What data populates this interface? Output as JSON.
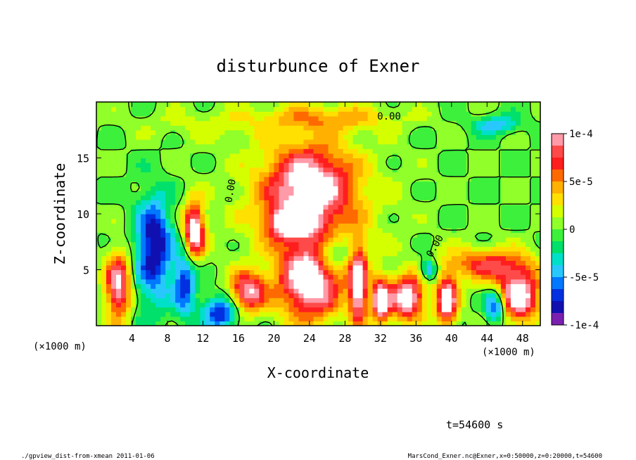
{
  "chart_data": {
    "type": "heatmap",
    "title": "disturbunce of Exner",
    "xlabel": "X-coordinate",
    "ylabel": "Z-coordinate",
    "x_unit": "(×1000 m)",
    "y_unit": "(×1000 m)",
    "x_ticks": [
      4,
      8,
      12,
      16,
      20,
      24,
      28,
      32,
      36,
      40,
      44,
      48
    ],
    "y_ticks": [
      5,
      10,
      15
    ],
    "xlim": [
      0,
      50
    ],
    "ylim": [
      0,
      20
    ],
    "colorbar": {
      "range": [
        -0.0001,
        0.0001
      ],
      "tick_values": [
        0.0001,
        5e-05,
        0,
        -5e-05,
        -0.0001
      ],
      "tick_labels": [
        "1e-4",
        "5e-5",
        "0",
        "-5e-5",
        "-1e-4"
      ],
      "colors": [
        "#ff9aa8",
        "#ff4a4a",
        "#ff1e1e",
        "#ff6a00",
        "#ffb000",
        "#ffe000",
        "#d4ff00",
        "#90ff2a",
        "#3cf03c",
        "#00e06a",
        "#00e0c8",
        "#28c8ff",
        "#0078ff",
        "#0030e0",
        "#1010b0",
        "#7a20b0"
      ]
    },
    "contour_labels": [
      "0.00",
      "0.00",
      "0.00"
    ],
    "annotation": "t=54600 s",
    "field": {
      "background": 0,
      "blobs": [
        {
          "x": 24,
          "z": 12.5,
          "rx": 4.5,
          "rz": 3.5,
          "v": 9e-05
        },
        {
          "x": 24,
          "z": 11,
          "rx": 8,
          "rz": 6,
          "v": 4e-05
        },
        {
          "x": 22,
          "z": 9.2,
          "rx": 2.5,
          "rz": 1.2,
          "v": 0.00011
        },
        {
          "x": 26,
          "z": 18.6,
          "rx": 8,
          "rz": 1.2,
          "v": 4e-05
        },
        {
          "x": 12,
          "z": 18,
          "rx": 8,
          "rz": 1.5,
          "v": 1.5e-05
        },
        {
          "x": 45,
          "z": 18,
          "rx": 2.5,
          "rz": 0.8,
          "v": -5e-05
        },
        {
          "x": 6.5,
          "z": 7.5,
          "rx": 2,
          "rz": 4,
          "v": -9e-05
        },
        {
          "x": 6,
          "z": 3,
          "rx": 3,
          "rz": 3,
          "v": -2e-05
        },
        {
          "x": 2.5,
          "z": 3.5,
          "rx": 1.5,
          "rz": 3,
          "v": 0.00011
        },
        {
          "x": 11,
          "z": 8.5,
          "rx": 1.2,
          "rz": 2.5,
          "v": 0.00012
        },
        {
          "x": 10,
          "z": 4,
          "rx": 1.2,
          "rz": 3,
          "v": -7e-05
        },
        {
          "x": 14,
          "z": 1.2,
          "rx": 2,
          "rz": 1.5,
          "v": -8e-05
        },
        {
          "x": 17,
          "z": 3,
          "rx": 2,
          "rz": 1.8,
          "v": 0.0001
        },
        {
          "x": 24,
          "z": 4,
          "rx": 3.5,
          "rz": 3.5,
          "v": 0.00012
        },
        {
          "x": 26.5,
          "z": 6.5,
          "rx": 2,
          "rz": 1.5,
          "v": -6e-05
        },
        {
          "x": 29.5,
          "z": 3.5,
          "rx": 1,
          "rz": 3.5,
          "v": 0.00012
        },
        {
          "x": 32,
          "z": 2.3,
          "rx": 1,
          "rz": 2,
          "v": 0.00012
        },
        {
          "x": 35,
          "z": 2.5,
          "rx": 2,
          "rz": 2,
          "v": 0.00012
        },
        {
          "x": 37.5,
          "z": 5,
          "rx": 1,
          "rz": 1,
          "v": -7e-05
        },
        {
          "x": 39.5,
          "z": 2.2,
          "rx": 1.2,
          "rz": 2.2,
          "v": 0.00012
        },
        {
          "x": 45,
          "z": 1.8,
          "rx": 1.2,
          "rz": 1.5,
          "v": -9e-05
        },
        {
          "x": 47.5,
          "z": 2.7,
          "rx": 2.5,
          "rz": 2.3,
          "v": 0.00012
        },
        {
          "x": 44,
          "z": 5.5,
          "rx": 5,
          "rz": 1.5,
          "v": 7e-05
        }
      ]
    }
  },
  "footer": {
    "left": "./gpview_dist-from-xmean  2011-01-06",
    "right": "MarsCond_Exner.nc@Exner,x=0:50000,z=0:20000,t=54600"
  }
}
